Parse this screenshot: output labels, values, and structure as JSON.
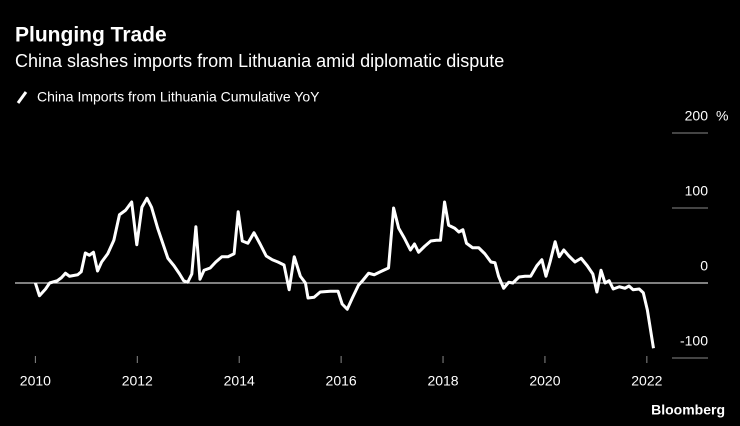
{
  "chart_data": {
    "type": "line",
    "title": "Plunging Trade",
    "subtitle": "China slashes imports from Lithuania amid diplomatic dispute",
    "y_unit": "%",
    "source": "Bloomberg",
    "legend": "top-left",
    "xlim": [
      2009.6,
      2023.2
    ],
    "xticks": [
      2010,
      2012,
      2014,
      2016,
      2018,
      2020,
      2022
    ],
    "ylim": [
      -100,
      200
    ],
    "yticks": [
      -100,
      0,
      100,
      200
    ],
    "x": [
      2010.0,
      2010.08,
      2010.2,
      2010.28,
      2010.43,
      2010.51,
      2010.59,
      2010.67,
      2010.83,
      2010.9,
      2010.98,
      2011.06,
      2011.14,
      2011.22,
      2011.3,
      2011.42,
      2011.54,
      2011.65,
      2011.77,
      2011.89,
      2011.99,
      2012.09,
      2012.19,
      2012.28,
      2012.4,
      2012.5,
      2012.6,
      2012.72,
      2012.83,
      2012.91,
      2012.99,
      2013.07,
      2013.15,
      2013.23,
      2013.31,
      2013.43,
      2013.54,
      2013.66,
      2013.78,
      2013.9,
      2013.98,
      2014.06,
      2014.17,
      2014.29,
      2014.41,
      2014.53,
      2014.65,
      2014.76,
      2014.88,
      2014.98,
      2015.08,
      2015.2,
      2015.3,
      2015.35,
      2015.47,
      2015.59,
      2015.79,
      2015.94,
      2016.02,
      2016.12,
      2016.22,
      2016.34,
      2016.42,
      2016.54,
      2016.65,
      2016.77,
      2016.93,
      2017.03,
      2017.13,
      2017.24,
      2017.36,
      2017.44,
      2017.52,
      2017.64,
      2017.76,
      2017.87,
      2017.95,
      2018.03,
      2018.11,
      2018.23,
      2018.31,
      2018.39,
      2018.46,
      2018.58,
      2018.7,
      2018.82,
      2018.94,
      2019.02,
      2019.09,
      2019.19,
      2019.29,
      2019.37,
      2019.49,
      2019.61,
      2019.72,
      2019.84,
      2019.94,
      2020.02,
      2020.1,
      2020.2,
      2020.28,
      2020.37,
      2020.47,
      2020.59,
      2020.71,
      2020.83,
      2020.94,
      2021.02,
      2021.1,
      2021.18,
      2021.26,
      2021.34,
      2021.46,
      2021.57,
      2021.65,
      2021.73,
      2021.85,
      2021.93,
      2022.01,
      2022.13
    ],
    "series": [
      {
        "name": "China Imports from Lithuania Cumulative YoY",
        "color": "#ffffff",
        "values": [
          0,
          -17,
          -8,
          0,
          3,
          7,
          13,
          9,
          11,
          15,
          40,
          37,
          41,
          16,
          28,
          39,
          57,
          91,
          97,
          108,
          51,
          101,
          113,
          101,
          73,
          53,
          33,
          23,
          12,
          3,
          1,
          12,
          75,
          5,
          17,
          20,
          28,
          35,
          35,
          39,
          95,
          56,
          53,
          67,
          52,
          36,
          31,
          28,
          24,
          -9,
          35,
          9,
          0,
          -20,
          -19,
          -12,
          -11,
          -11,
          -28,
          -35,
          -20,
          -3,
          3,
          13,
          11,
          15,
          20,
          100,
          73,
          60,
          44,
          52,
          41,
          49,
          56,
          57,
          57,
          108,
          77,
          73,
          68,
          71,
          53,
          47,
          47,
          39,
          28,
          27,
          9,
          -7,
          1,
          0,
          8,
          9,
          9,
          23,
          31,
          9,
          28,
          55,
          35,
          44,
          36,
          28,
          33,
          23,
          12,
          -12,
          17,
          0,
          3,
          -8,
          -5,
          -7,
          -4,
          -9,
          -8,
          -13,
          -36,
          -87
        ]
      }
    ]
  }
}
